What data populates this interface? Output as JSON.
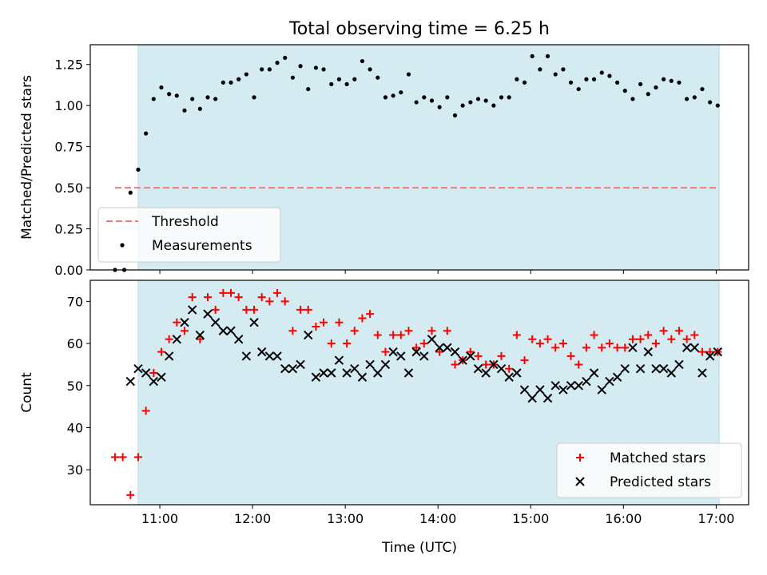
{
  "title": "Total observing time = 6.25 h",
  "chart_data": [
    {
      "type": "scatter",
      "ylabel": "Matched/Predicted stars",
      "xlabel": "",
      "ylim": [
        0,
        1.37
      ],
      "yticks": [
        0.0,
        0.25,
        0.5,
        0.75,
        1.0,
        1.25
      ],
      "ytick_labels": [
        "0.00",
        "0.25",
        "0.50",
        "0.75",
        "1.00",
        "1.25"
      ],
      "xlim": [
        "10:15",
        "17:21"
      ],
      "xticks": [
        "11:00",
        "12:00",
        "13:00",
        "14:00",
        "15:00",
        "16:00",
        "17:00"
      ],
      "xtick_labels_shown": false,
      "observing_window": [
        "10:46",
        "17:02"
      ],
      "shade_color": "#d4ebf1",
      "threshold": {
        "name": "Threshold",
        "value": 0.5,
        "x_range": [
          "10:31",
          "17:02"
        ],
        "color": "#f07b7b",
        "style": "dashed"
      },
      "series": [
        {
          "name": "Measurements",
          "color": "#000000",
          "marker": "dot",
          "points": [
            [
              "10:31",
              0.0
            ],
            [
              "10:37",
              0.0
            ],
            [
              "10:41",
              0.47
            ],
            [
              "10:46",
              0.61
            ],
            [
              "10:51",
              0.83
            ],
            [
              "10:56",
              1.04
            ],
            [
              "11:01",
              1.11
            ],
            [
              "11:06",
              1.07
            ],
            [
              "11:11",
              1.06
            ],
            [
              "11:16",
              0.97
            ],
            [
              "11:21",
              1.04
            ],
            [
              "11:26",
              0.98
            ],
            [
              "11:31",
              1.05
            ],
            [
              "11:36",
              1.04
            ],
            [
              "11:41",
              1.14
            ],
            [
              "11:46",
              1.14
            ],
            [
              "11:51",
              1.16
            ],
            [
              "11:56",
              1.19
            ],
            [
              "12:01",
              1.05
            ],
            [
              "12:06",
              1.22
            ],
            [
              "12:11",
              1.22
            ],
            [
              "12:16",
              1.26
            ],
            [
              "12:21",
              1.29
            ],
            [
              "12:26",
              1.17
            ],
            [
              "12:31",
              1.24
            ],
            [
              "12:36",
              1.1
            ],
            [
              "12:41",
              1.23
            ],
            [
              "12:46",
              1.22
            ],
            [
              "12:51",
              1.13
            ],
            [
              "12:56",
              1.16
            ],
            [
              "13:01",
              1.13
            ],
            [
              "13:06",
              1.16
            ],
            [
              "13:11",
              1.27
            ],
            [
              "13:16",
              1.22
            ],
            [
              "13:21",
              1.17
            ],
            [
              "13:26",
              1.05
            ],
            [
              "13:31",
              1.06
            ],
            [
              "13:36",
              1.08
            ],
            [
              "13:41",
              1.19
            ],
            [
              "13:46",
              1.02
            ],
            [
              "13:51",
              1.05
            ],
            [
              "13:56",
              1.03
            ],
            [
              "14:01",
              0.99
            ],
            [
              "14:06",
              1.05
            ],
            [
              "14:11",
              0.94
            ],
            [
              "14:16",
              1.0
            ],
            [
              "14:21",
              1.02
            ],
            [
              "14:26",
              1.04
            ],
            [
              "14:31",
              1.03
            ],
            [
              "14:36",
              1.0
            ],
            [
              "14:41",
              1.05
            ],
            [
              "14:46",
              1.05
            ],
            [
              "14:51",
              1.16
            ],
            [
              "14:56",
              1.14
            ],
            [
              "15:01",
              1.3
            ],
            [
              "15:06",
              1.22
            ],
            [
              "15:11",
              1.3
            ],
            [
              "15:16",
              1.19
            ],
            [
              "15:21",
              1.22
            ],
            [
              "15:26",
              1.14
            ],
            [
              "15:31",
              1.1
            ],
            [
              "15:36",
              1.16
            ],
            [
              "15:41",
              1.16
            ],
            [
              "15:46",
              1.2
            ],
            [
              "15:51",
              1.18
            ],
            [
              "15:56",
              1.14
            ],
            [
              "16:01",
              1.09
            ],
            [
              "16:06",
              1.04
            ],
            [
              "16:11",
              1.13
            ],
            [
              "16:16",
              1.07
            ],
            [
              "16:21",
              1.11
            ],
            [
              "16:26",
              1.16
            ],
            [
              "16:31",
              1.15
            ],
            [
              "16:36",
              1.14
            ],
            [
              "16:41",
              1.04
            ],
            [
              "16:46",
              1.05
            ],
            [
              "16:51",
              1.1
            ],
            [
              "16:56",
              1.02
            ],
            [
              "17:01",
              1.0
            ]
          ]
        }
      ],
      "legend_position": "lower-left"
    },
    {
      "type": "scatter",
      "ylabel": "Count",
      "xlabel": "Time (UTC)",
      "ylim": [
        21.7,
        75
      ],
      "yticks": [
        30,
        40,
        50,
        60,
        70
      ],
      "ytick_labels": [
        "30",
        "40",
        "50",
        "60",
        "70"
      ],
      "xlim": [
        "10:15",
        "17:21"
      ],
      "xticks": [
        "11:00",
        "12:00",
        "13:00",
        "14:00",
        "15:00",
        "16:00",
        "17:00"
      ],
      "xtick_labels": [
        "11:00",
        "12:00",
        "13:00",
        "14:00",
        "15:00",
        "16:00",
        "17:00"
      ],
      "observing_window": [
        "10:46",
        "17:02"
      ],
      "shade_color": "#d4ebf1",
      "series": [
        {
          "name": "Matched stars",
          "color": "#ff0000",
          "marker": "plus",
          "points": [
            [
              "10:31",
              33
            ],
            [
              "10:36",
              33
            ],
            [
              "10:41",
              24
            ],
            [
              "10:46",
              33
            ],
            [
              "10:51",
              44
            ],
            [
              "10:56",
              53
            ],
            [
              "11:01",
              58
            ],
            [
              "11:06",
              61
            ],
            [
              "11:11",
              65
            ],
            [
              "11:16",
              63
            ],
            [
              "11:21",
              71
            ],
            [
              "11:26",
              61
            ],
            [
              "11:31",
              71
            ],
            [
              "11:36",
              68
            ],
            [
              "11:41",
              72
            ],
            [
              "11:46",
              72
            ],
            [
              "11:51",
              71
            ],
            [
              "11:56",
              68
            ],
            [
              "12:01",
              68
            ],
            [
              "12:06",
              71
            ],
            [
              "12:11",
              70
            ],
            [
              "12:16",
              72
            ],
            [
              "12:21",
              70
            ],
            [
              "12:26",
              63
            ],
            [
              "12:31",
              68
            ],
            [
              "12:36",
              68
            ],
            [
              "12:41",
              64
            ],
            [
              "12:46",
              65
            ],
            [
              "12:51",
              60
            ],
            [
              "12:56",
              65
            ],
            [
              "13:01",
              60
            ],
            [
              "13:06",
              63
            ],
            [
              "13:11",
              66
            ],
            [
              "13:16",
              67
            ],
            [
              "13:21",
              62
            ],
            [
              "13:26",
              58
            ],
            [
              "13:31",
              62
            ],
            [
              "13:36",
              62
            ],
            [
              "13:41",
              63
            ],
            [
              "13:46",
              59
            ],
            [
              "13:51",
              60
            ],
            [
              "13:56",
              63
            ],
            [
              "14:01",
              58
            ],
            [
              "14:06",
              63
            ],
            [
              "14:11",
              55
            ],
            [
              "14:16",
              56
            ],
            [
              "14:21",
              58
            ],
            [
              "14:26",
              57
            ],
            [
              "14:31",
              55
            ],
            [
              "14:36",
              55
            ],
            [
              "14:41",
              57
            ],
            [
              "14:46",
              54
            ],
            [
              "14:51",
              62
            ],
            [
              "14:56",
              56
            ],
            [
              "15:01",
              61
            ],
            [
              "15:06",
              60
            ],
            [
              "15:11",
              61
            ],
            [
              "15:16",
              59
            ],
            [
              "15:21",
              60
            ],
            [
              "15:26",
              57
            ],
            [
              "15:31",
              55
            ],
            [
              "15:36",
              59
            ],
            [
              "15:41",
              62
            ],
            [
              "15:46",
              59
            ],
            [
              "15:51",
              60
            ],
            [
              "15:56",
              59
            ],
            [
              "16:01",
              59
            ],
            [
              "16:06",
              61
            ],
            [
              "16:11",
              61
            ],
            [
              "16:16",
              62
            ],
            [
              "16:21",
              60
            ],
            [
              "16:26",
              63
            ],
            [
              "16:31",
              61
            ],
            [
              "16:36",
              63
            ],
            [
              "16:41",
              61
            ],
            [
              "16:46",
              62
            ],
            [
              "16:51",
              58
            ],
            [
              "16:56",
              58
            ],
            [
              "17:01",
              58
            ]
          ]
        },
        {
          "name": "Predicted stars",
          "color": "#000000",
          "marker": "x",
          "points": [
            [
              "10:41",
              51
            ],
            [
              "10:46",
              54
            ],
            [
              "10:51",
              53
            ],
            [
              "10:56",
              51
            ],
            [
              "11:01",
              52
            ],
            [
              "11:06",
              57
            ],
            [
              "11:11",
              61
            ],
            [
              "11:16",
              65
            ],
            [
              "11:21",
              68
            ],
            [
              "11:26",
              62
            ],
            [
              "11:31",
              67
            ],
            [
              "11:36",
              65
            ],
            [
              "11:41",
              63
            ],
            [
              "11:46",
              63
            ],
            [
              "11:51",
              61
            ],
            [
              "11:56",
              57
            ],
            [
              "12:01",
              65
            ],
            [
              "12:06",
              58
            ],
            [
              "12:11",
              57
            ],
            [
              "12:16",
              57
            ],
            [
              "12:21",
              54
            ],
            [
              "12:26",
              54
            ],
            [
              "12:31",
              55
            ],
            [
              "12:36",
              62
            ],
            [
              "12:41",
              52
            ],
            [
              "12:46",
              53
            ],
            [
              "12:51",
              53
            ],
            [
              "12:56",
              56
            ],
            [
              "13:01",
              53
            ],
            [
              "13:06",
              54
            ],
            [
              "13:11",
              52
            ],
            [
              "13:16",
              55
            ],
            [
              "13:21",
              53
            ],
            [
              "13:26",
              55
            ],
            [
              "13:31",
              58
            ],
            [
              "13:36",
              57
            ],
            [
              "13:41",
              53
            ],
            [
              "13:46",
              58
            ],
            [
              "13:51",
              57
            ],
            [
              "13:56",
              61
            ],
            [
              "14:01",
              59
            ],
            [
              "14:06",
              59
            ],
            [
              "14:11",
              58
            ],
            [
              "14:16",
              56
            ],
            [
              "14:21",
              57
            ],
            [
              "14:26",
              54
            ],
            [
              "14:31",
              53
            ],
            [
              "14:36",
              55
            ],
            [
              "14:41",
              54
            ],
            [
              "14:46",
              52
            ],
            [
              "14:51",
              53
            ],
            [
              "14:56",
              49
            ],
            [
              "15:01",
              47
            ],
            [
              "15:06",
              49
            ],
            [
              "15:11",
              47
            ],
            [
              "15:16",
              50
            ],
            [
              "15:21",
              49
            ],
            [
              "15:26",
              50
            ],
            [
              "15:31",
              50
            ],
            [
              "15:36",
              51
            ],
            [
              "15:41",
              53
            ],
            [
              "15:46",
              49
            ],
            [
              "15:51",
              51
            ],
            [
              "15:56",
              52
            ],
            [
              "16:01",
              54
            ],
            [
              "16:06",
              59
            ],
            [
              "16:11",
              54
            ],
            [
              "16:16",
              58
            ],
            [
              "16:21",
              54
            ],
            [
              "16:26",
              54
            ],
            [
              "16:31",
              53
            ],
            [
              "16:36",
              55
            ],
            [
              "16:41",
              59
            ],
            [
              "16:46",
              59
            ],
            [
              "16:51",
              53
            ],
            [
              "16:56",
              57
            ],
            [
              "17:01",
              58
            ]
          ]
        }
      ],
      "legend_position": "lower-right"
    }
  ]
}
